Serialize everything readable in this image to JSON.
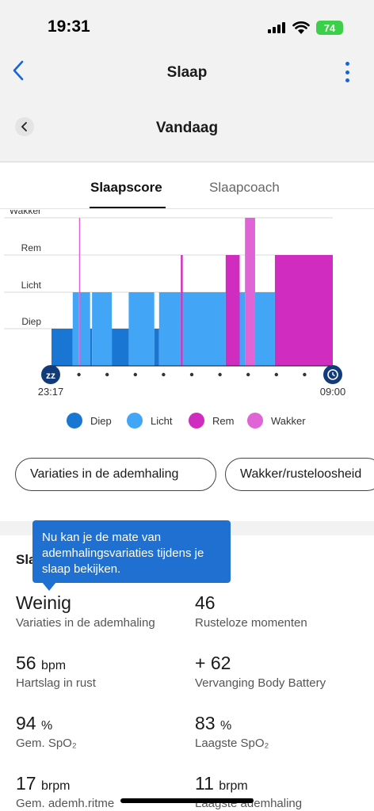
{
  "status_bar": {
    "time": "19:31",
    "battery": "74"
  },
  "nav": {
    "title": "Slaap",
    "back_icon": "chevron-left-icon",
    "menu_icon": "more-vertical-icon"
  },
  "date": {
    "title": "Vandaag"
  },
  "tabs": [
    {
      "label": "Slaapscore",
      "active": true
    },
    {
      "label": "Slaapcoach",
      "active": false
    }
  ],
  "chart_data": {
    "type": "bar",
    "title": "",
    "levels": [
      "Diep",
      "Licht",
      "Rem",
      "Wakker"
    ],
    "x_start_label": "23:17",
    "x_end_label": "09:00",
    "x_range_minutes": [
      0,
      583
    ],
    "colors": {
      "Diep": "#1976d2",
      "Licht": "#42a5f5",
      "Rem": "#d02cc0",
      "Wakker": "#e064d6"
    },
    "segments": [
      {
        "stage": "Diep",
        "start": 0,
        "end": 44
      },
      {
        "stage": "Licht",
        "start": 44,
        "end": 57
      },
      {
        "stage": "Wakker",
        "start": 57,
        "end": 59
      },
      {
        "stage": "Licht",
        "start": 59,
        "end": 80
      },
      {
        "stage": "Diep",
        "start": 80,
        "end": 84
      },
      {
        "stage": "Licht",
        "start": 84,
        "end": 125
      },
      {
        "stage": "Diep",
        "start": 125,
        "end": 160
      },
      {
        "stage": "Licht",
        "start": 160,
        "end": 213
      },
      {
        "stage": "Diep",
        "start": 213,
        "end": 223
      },
      {
        "stage": "Licht",
        "start": 223,
        "end": 268
      },
      {
        "stage": "Rem",
        "start": 268,
        "end": 272
      },
      {
        "stage": "Licht",
        "start": 272,
        "end": 361
      },
      {
        "stage": "Rem",
        "start": 361,
        "end": 390
      },
      {
        "stage": "Licht",
        "start": 390,
        "end": 401
      },
      {
        "stage": "Wakker",
        "start": 401,
        "end": 422
      },
      {
        "stage": "Licht",
        "start": 422,
        "end": 463
      },
      {
        "stage": "Rem",
        "start": 463,
        "end": 583
      }
    ]
  },
  "chart_icons": {
    "start_icon": "sleep-zz-icon",
    "start_text": "zz",
    "end_icon": "alarm-clock-icon"
  },
  "legend": [
    {
      "label": "Diep",
      "color": "#1976d2"
    },
    {
      "label": "Licht",
      "color": "#42a5f5"
    },
    {
      "label": "Rem",
      "color": "#d02cc0"
    },
    {
      "label": "Wakker",
      "color": "#e064d6"
    }
  ],
  "pills": [
    {
      "label": "Variaties in de ademhaling"
    },
    {
      "label": "Wakker/rusteloosheid"
    }
  ],
  "stats_header": "Sla",
  "tooltip": "Nu kan je de mate van ademhalingsvariaties tijdens je slaap bekijken.",
  "stats": [
    {
      "prefix": "",
      "value": "Weinig",
      "unit": "",
      "label": "Variaties in de ademhaling"
    },
    {
      "prefix": "",
      "value": "46",
      "unit": "",
      "label": "Rusteloze momenten"
    },
    {
      "prefix": "",
      "value": "56",
      "unit": "bpm",
      "label": "Hartslag in rust"
    },
    {
      "prefix": "+",
      "value": "62",
      "unit": "",
      "label": "Vervanging Body Battery"
    },
    {
      "prefix": "",
      "value": "94",
      "unit": "%",
      "label": "Gem. SpO₂"
    },
    {
      "prefix": "",
      "value": "83",
      "unit": "%",
      "label": "Laagste SpO₂"
    },
    {
      "prefix": "",
      "value": "17",
      "unit": "brpm",
      "label": "Gem. ademh.ritme"
    },
    {
      "prefix": "",
      "value": "11",
      "unit": "brpm",
      "label": "Laagste ademhaling"
    }
  ]
}
